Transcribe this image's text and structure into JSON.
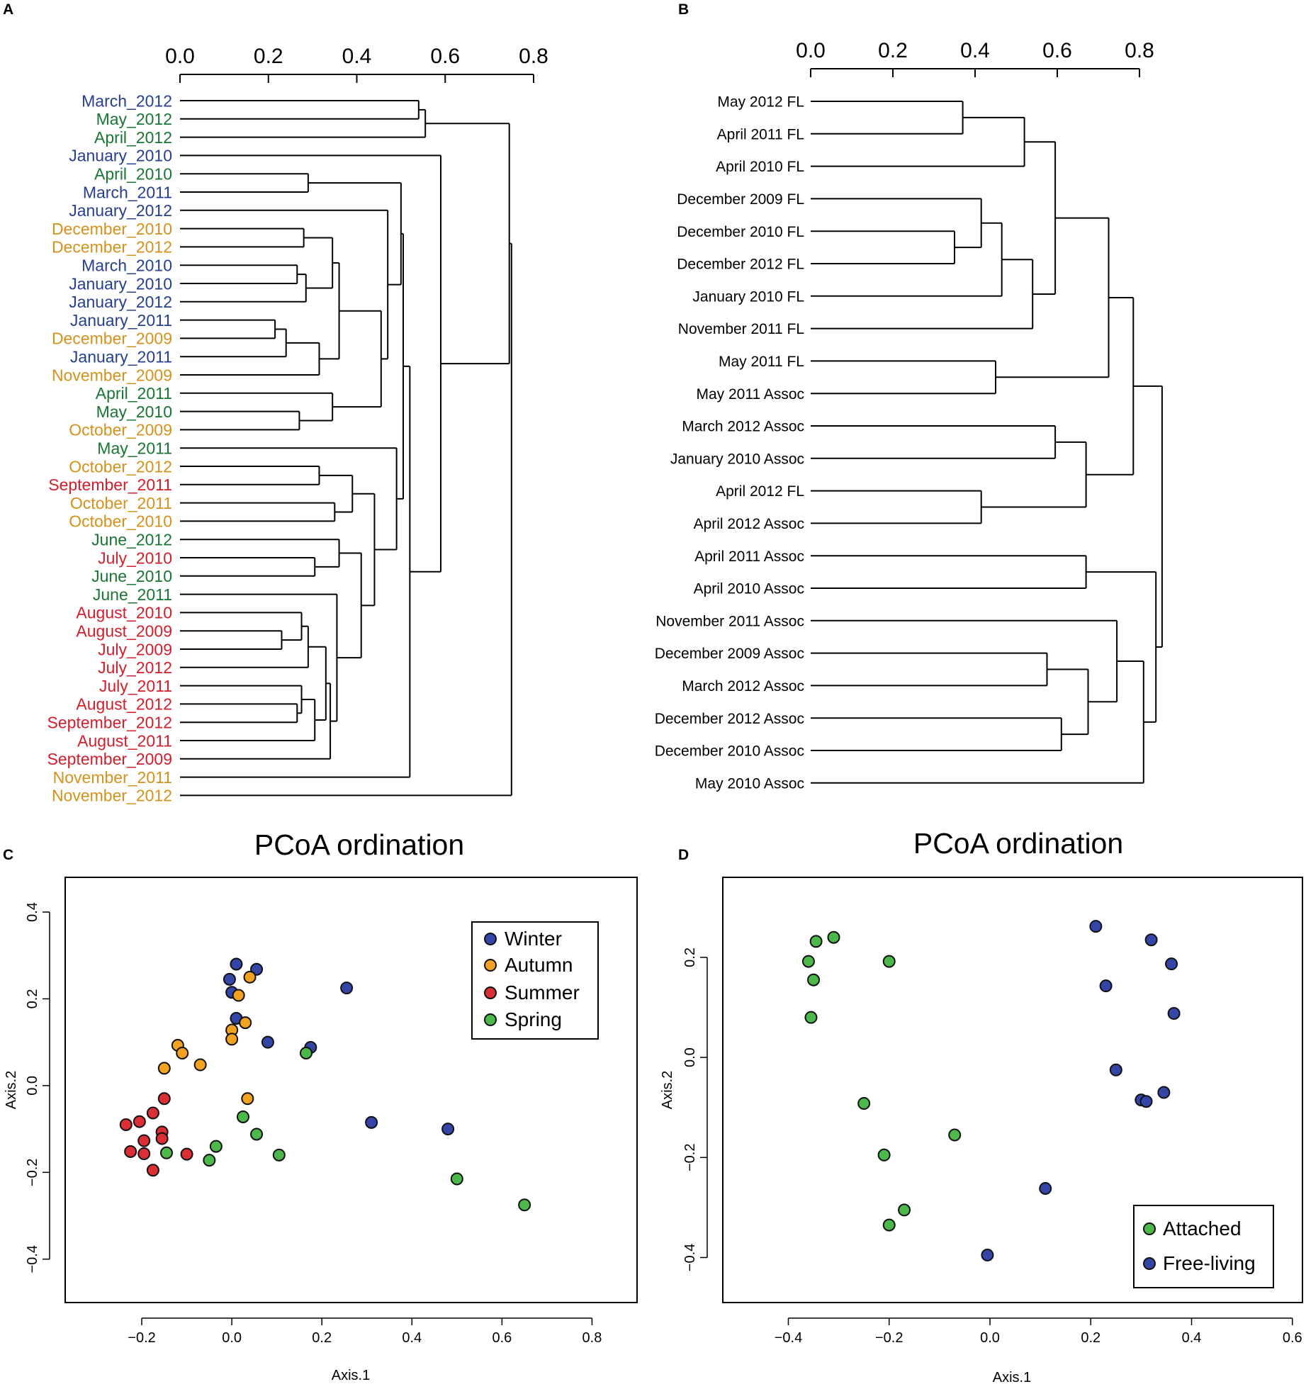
{
  "colors": {
    "winter": "#25408f",
    "autumn": "#d4921c",
    "summer": "#d21e2b",
    "spring": "#197533",
    "dot_winter": "#3346a8",
    "dot_autumn": "#f3a21f",
    "dot_summer": "#db2e35",
    "dot_spring": "#4cb84a"
  },
  "panels": {
    "a": "A",
    "b": "B",
    "c": "C",
    "d": "D"
  },
  "chart_data": [
    {
      "type": "dendrogram",
      "panel": "A",
      "axis_range": [
        0,
        0.8
      ],
      "ticks": [
        {
          "v": 0,
          "label": "0.0"
        },
        {
          "v": 0.2,
          "label": "0.2"
        },
        {
          "v": 0.4,
          "label": "0.4"
        },
        {
          "v": 0.6,
          "label": "0.6"
        },
        {
          "v": 0.8,
          "label": "0.8"
        }
      ],
      "leaves": [
        {
          "label": "March_2012",
          "season": "winter"
        },
        {
          "label": "May_2012",
          "season": "spring"
        },
        {
          "label": "April_2012",
          "season": "spring"
        },
        {
          "label": "January_2010",
          "season": "winter"
        },
        {
          "label": "April_2010",
          "season": "spring"
        },
        {
          "label": "March_2011",
          "season": "winter"
        },
        {
          "label": "January_2012",
          "season": "winter"
        },
        {
          "label": "December_2010",
          "season": "autumn"
        },
        {
          "label": "December_2012",
          "season": "autumn"
        },
        {
          "label": "March_2010",
          "season": "winter"
        },
        {
          "label": "January_2010",
          "season": "winter"
        },
        {
          "label": "January_2012",
          "season": "winter"
        },
        {
          "label": "January_2011",
          "season": "winter"
        },
        {
          "label": "December_2009",
          "season": "autumn"
        },
        {
          "label": "January_2011",
          "season": "winter"
        },
        {
          "label": "November_2009",
          "season": "autumn"
        },
        {
          "label": "April_2011",
          "season": "spring"
        },
        {
          "label": "May_2010",
          "season": "spring"
        },
        {
          "label": "October_2009",
          "season": "autumn"
        },
        {
          "label": "May_2011",
          "season": "spring"
        },
        {
          "label": "October_2012",
          "season": "autumn"
        },
        {
          "label": "September_2011",
          "season": "summer"
        },
        {
          "label": "October_2011",
          "season": "autumn"
        },
        {
          "label": "October_2010",
          "season": "autumn"
        },
        {
          "label": "June_2012",
          "season": "spring"
        },
        {
          "label": "July_2010",
          "season": "summer"
        },
        {
          "label": "June_2010",
          "season": "spring"
        },
        {
          "label": "June_2011",
          "season": "spring"
        },
        {
          "label": "August_2010",
          "season": "summer"
        },
        {
          "label": "August_2009",
          "season": "summer"
        },
        {
          "label": "July_2009",
          "season": "summer"
        },
        {
          "label": "July_2012",
          "season": "summer"
        },
        {
          "label": "July_2011",
          "season": "summer"
        },
        {
          "label": "August_2012",
          "season": "summer"
        },
        {
          "label": "September_2012",
          "season": "summer"
        },
        {
          "label": "August_2011",
          "season": "summer"
        },
        {
          "label": "September_2009",
          "season": "summer"
        },
        {
          "label": "November_2011",
          "season": "autumn"
        },
        {
          "label": "November_2012",
          "season": "autumn"
        }
      ],
      "merges": [
        [
          0,
          1,
          0.54
        ],
        [
          2,
          -1,
          0.555
        ],
        [
          4,
          5,
          0.29
        ],
        [
          7,
          8,
          0.28
        ],
        [
          9,
          10,
          0.265
        ],
        [
          -5,
          11,
          0.285
        ],
        [
          12,
          13,
          0.215
        ],
        [
          -7,
          14,
          0.24
        ],
        [
          -8,
          15,
          0.315
        ],
        [
          -4,
          -6,
          0.345
        ],
        [
          -9,
          -10,
          0.36
        ],
        [
          17,
          18,
          0.27
        ],
        [
          16,
          -12,
          0.345
        ],
        [
          -11,
          -13,
          0.455
        ],
        [
          6,
          -14,
          0.47
        ],
        [
          -3,
          -15,
          0.5
        ],
        [
          22,
          23,
          0.35
        ],
        [
          20,
          21,
          0.315
        ],
        [
          -17,
          -18,
          0.39
        ],
        [
          25,
          26,
          0.305
        ],
        [
          24,
          -20,
          0.36
        ],
        [
          29,
          30,
          0.23
        ],
        [
          28,
          -22,
          0.275
        ],
        [
          -23,
          31,
          0.29
        ],
        [
          33,
          34,
          0.265
        ],
        [
          32,
          -25,
          0.275
        ],
        [
          -26,
          35,
          0.305
        ],
        [
          -24,
          -27,
          0.33
        ],
        [
          -28,
          36,
          0.34
        ],
        [
          27,
          -29,
          0.355
        ],
        [
          -21,
          -30,
          0.41
        ],
        [
          -19,
          -31,
          0.44
        ],
        [
          19,
          -32,
          0.49
        ],
        [
          -16,
          -33,
          0.505
        ],
        [
          -34,
          37,
          0.52
        ],
        [
          3,
          -35,
          0.59
        ],
        [
          -2,
          -36,
          0.745
        ],
        [
          -37,
          38,
          0.75
        ]
      ]
    },
    {
      "type": "dendrogram",
      "panel": "B",
      "axis_range": [
        0,
        0.8
      ],
      "ticks": [
        {
          "v": 0,
          "label": "0.0"
        },
        {
          "v": 0.2,
          "label": "0.2"
        },
        {
          "v": 0.4,
          "label": "0.4"
        },
        {
          "v": 0.6,
          "label": "0.6"
        },
        {
          "v": 0.8,
          "label": "0.8"
        }
      ],
      "leaves": [
        {
          "label": "May 2012 FL"
        },
        {
          "label": "April 2011 FL"
        },
        {
          "label": "April 2010 FL"
        },
        {
          "label": "December 2009 FL"
        },
        {
          "label": "December 2010 FL"
        },
        {
          "label": "December 2012 FL"
        },
        {
          "label": "January 2010 FL"
        },
        {
          "label": "November 2011 FL"
        },
        {
          "label": "May 2011 FL"
        },
        {
          "label": "May 2011 Assoc"
        },
        {
          "label": "March 2012 Assoc"
        },
        {
          "label": "January 2010 Assoc"
        },
        {
          "label": "April 2012 FL"
        },
        {
          "label": "April 2012  Assoc"
        },
        {
          "label": "April 2011 Assoc"
        },
        {
          "label": "April 2010 Assoc"
        },
        {
          "label": "November 2011 Assoc"
        },
        {
          "label": "December 2009 Assoc"
        },
        {
          "label": "March 2012 Assoc"
        },
        {
          "label": "December 2012 Assoc"
        },
        {
          "label": "December 2010 Assoc"
        },
        {
          "label": "May 2010 Assoc"
        }
      ],
      "merges": [
        [
          0,
          1,
          0.37
        ],
        [
          -1,
          2,
          0.52
        ],
        [
          4,
          5,
          0.35
        ],
        [
          3,
          -3,
          0.415
        ],
        [
          -4,
          6,
          0.465
        ],
        [
          -5,
          7,
          0.54
        ],
        [
          -2,
          -6,
          0.595
        ],
        [
          8,
          9,
          0.45
        ],
        [
          -7,
          -8,
          0.725
        ],
        [
          10,
          11,
          0.595
        ],
        [
          12,
          13,
          0.415
        ],
        [
          -10,
          -11,
          0.67
        ],
        [
          -9,
          -12,
          0.785
        ],
        [
          14,
          15,
          0.67
        ],
        [
          17,
          18,
          0.575
        ],
        [
          19,
          20,
          0.61
        ],
        [
          -15,
          -16,
          0.675
        ],
        [
          16,
          -17,
          0.745
        ],
        [
          -18,
          21,
          0.81
        ],
        [
          -14,
          -19,
          0.84
        ],
        [
          -13,
          -20,
          0.855
        ]
      ]
    },
    {
      "type": "scatter",
      "panel": "C",
      "title": "PCoA ordination",
      "xlabel": "Axis.1",
      "ylabel": "Axis.2",
      "xlim": [
        -0.37,
        0.9
      ],
      "ylim": [
        -0.5,
        0.48
      ],
      "xticks": [
        {
          "v": -0.2,
          "label": "−0.2"
        },
        {
          "v": 0,
          "label": "0.0"
        },
        {
          "v": 0.2,
          "label": "0.2"
        },
        {
          "v": 0.4,
          "label": "0.4"
        },
        {
          "v": 0.6,
          "label": "0.6"
        },
        {
          "v": 0.8,
          "label": "0.8"
        }
      ],
      "yticks": [
        {
          "v": -0.4,
          "label": "−0.4"
        },
        {
          "v": -0.2,
          "label": "−0.2"
        },
        {
          "v": 0,
          "label": "0.0"
        },
        {
          "v": 0.2,
          "label": "0.2"
        },
        {
          "v": 0.4,
          "label": "0.4"
        }
      ],
      "legend": {
        "position": "top-right",
        "entries": [
          {
            "label": "Winter",
            "season": "winter"
          },
          {
            "label": "Autumn",
            "season": "autumn"
          },
          {
            "label": "Summer",
            "season": "summer"
          },
          {
            "label": "Spring",
            "season": "spring"
          }
        ]
      },
      "series": [
        {
          "name": "Winter",
          "points": [
            [
              0.01,
              0.28
            ],
            [
              0.055,
              0.268
            ],
            [
              -0.005,
              0.245
            ],
            [
              0.0,
              0.215
            ],
            [
              0.01,
              0.155
            ],
            [
              0.255,
              0.225
            ],
            [
              0.08,
              0.1
            ],
            [
              0.175,
              0.088
            ],
            [
              0.48,
              -0.1
            ],
            [
              0.31,
              -0.085
            ]
          ]
        },
        {
          "name": "Autumn",
          "points": [
            [
              0.04,
              0.25
            ],
            [
              0.015,
              0.208
            ],
            [
              0.03,
              0.145
            ],
            [
              0.0,
              0.128
            ],
            [
              0.0,
              0.107
            ],
            [
              -0.12,
              0.093
            ],
            [
              -0.11,
              0.075
            ],
            [
              -0.15,
              0.04
            ],
            [
              -0.07,
              0.048
            ],
            [
              0.035,
              -0.03
            ]
          ]
        },
        {
          "name": "Summer",
          "points": [
            [
              -0.15,
              -0.03
            ],
            [
              -0.175,
              -0.063
            ],
            [
              -0.205,
              -0.083
            ],
            [
              -0.235,
              -0.09
            ],
            [
              -0.155,
              -0.107
            ],
            [
              -0.195,
              -0.127
            ],
            [
              -0.155,
              -0.122
            ],
            [
              -0.225,
              -0.152
            ],
            [
              -0.195,
              -0.157
            ],
            [
              -0.1,
              -0.158
            ],
            [
              -0.175,
              -0.195
            ]
          ]
        },
        {
          "name": "Spring",
          "points": [
            [
              0.165,
              0.075
            ],
            [
              0.025,
              -0.072
            ],
            [
              0.055,
              -0.112
            ],
            [
              -0.035,
              -0.14
            ],
            [
              -0.145,
              -0.155
            ],
            [
              0.105,
              -0.16
            ],
            [
              -0.05,
              -0.172
            ],
            [
              0.5,
              -0.215
            ],
            [
              0.65,
              -0.275
            ]
          ]
        }
      ]
    },
    {
      "type": "scatter",
      "panel": "D",
      "title": "PCoA ordination",
      "xlabel": "Axis.1",
      "ylabel": "Axis.2",
      "xlim": [
        -0.53,
        0.62
      ],
      "ylim": [
        -0.49,
        0.36
      ],
      "xticks": [
        {
          "v": -0.4,
          "label": "−0.4"
        },
        {
          "v": -0.2,
          "label": "−0.2"
        },
        {
          "v": 0,
          "label": "0.0"
        },
        {
          "v": 0.2,
          "label": "0.2"
        },
        {
          "v": 0.4,
          "label": "0.4"
        },
        {
          "v": 0.6,
          "label": "0.6"
        }
      ],
      "yticks": [
        {
          "v": -0.4,
          "label": "−0.4"
        },
        {
          "v": -0.2,
          "label": "−0.2"
        },
        {
          "v": 0,
          "label": "0.0"
        },
        {
          "v": 0.2,
          "label": "0.2"
        }
      ],
      "legend": {
        "position": "bottom-right",
        "entries": [
          {
            "label": "Attached",
            "season": "spring"
          },
          {
            "label": "Free-living",
            "season": "winter"
          }
        ]
      },
      "series": [
        {
          "name": "Attached",
          "points": [
            [
              -0.31,
              0.24
            ],
            [
              -0.345,
              0.232
            ],
            [
              -0.36,
              0.192
            ],
            [
              -0.2,
              0.192
            ],
            [
              -0.35,
              0.155
            ],
            [
              -0.355,
              0.08
            ],
            [
              -0.25,
              -0.092
            ],
            [
              -0.07,
              -0.155
            ],
            [
              -0.21,
              -0.195
            ],
            [
              -0.17,
              -0.305
            ],
            [
              -0.2,
              -0.335
            ]
          ]
        },
        {
          "name": "Free-living",
          "points": [
            [
              0.21,
              0.262
            ],
            [
              0.32,
              0.235
            ],
            [
              0.36,
              0.187
            ],
            [
              0.23,
              0.143
            ],
            [
              0.365,
              0.088
            ],
            [
              0.25,
              -0.025
            ],
            [
              0.3,
              -0.085
            ],
            [
              0.345,
              -0.07
            ],
            [
              0.31,
              -0.088
            ],
            [
              0.11,
              -0.262
            ],
            [
              -0.005,
              -0.395
            ]
          ]
        }
      ]
    }
  ]
}
